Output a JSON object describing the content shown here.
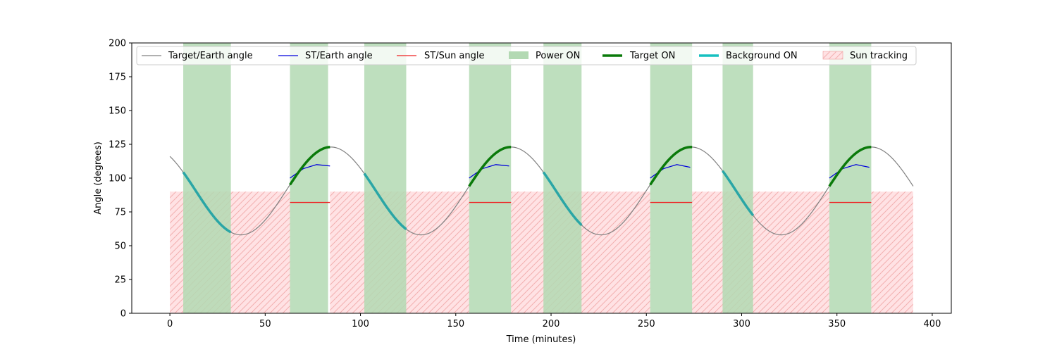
{
  "chart_data": {
    "type": "line",
    "title": "",
    "xlabel": "Time (minutes)",
    "ylabel": "Angle (degrees)",
    "xlim": [
      -20,
      410
    ],
    "ylim": [
      0,
      200
    ],
    "xticks": [
      0,
      50,
      100,
      150,
      200,
      250,
      300,
      350,
      400
    ],
    "yticks": [
      0,
      25,
      50,
      75,
      100,
      125,
      150,
      175,
      200
    ],
    "grid": false,
    "legend_position": "top, full width",
    "target_earth": {
      "name": "Target/Earth angle",
      "color": "#808080",
      "period_minutes": 94.5,
      "min": 58,
      "max": 123,
      "peak_times": [
        84.5,
        179,
        273.5,
        368
      ],
      "x_range": [
        0,
        390
      ]
    },
    "st_earth": {
      "name": "ST/Earth angle",
      "color": "#0000dd",
      "segments": [
        {
          "x": [
            63,
            70,
            77,
            84
          ],
          "y": [
            100,
            107,
            110,
            109
          ]
        },
        {
          "x": [
            157,
            164,
            171,
            178
          ],
          "y": [
            100,
            107,
            110,
            109
          ]
        },
        {
          "x": [
            252,
            259,
            266,
            273
          ],
          "y": [
            100,
            107,
            110,
            108
          ]
        },
        {
          "x": [
            346,
            353,
            360,
            367
          ],
          "y": [
            100,
            107,
            110,
            108
          ]
        }
      ]
    },
    "st_sun": {
      "name": "ST/Sun angle",
      "color": "#ee2222",
      "segments": [
        {
          "x": [
            63,
            84
          ],
          "y": [
            82,
            82
          ]
        },
        {
          "x": [
            157,
            179
          ],
          "y": [
            82,
            82
          ]
        },
        {
          "x": [
            252,
            274
          ],
          "y": [
            82,
            82
          ]
        },
        {
          "x": [
            346,
            368
          ],
          "y": [
            82,
            82
          ]
        }
      ]
    },
    "power_on": {
      "name": "Power ON",
      "color": "#b3d9b3",
      "intervals": [
        [
          7,
          32
        ],
        [
          63,
          83
        ],
        [
          102,
          124
        ],
        [
          157,
          179
        ],
        [
          196,
          216
        ],
        [
          252,
          274
        ],
        [
          290,
          306
        ],
        [
          346,
          368
        ]
      ]
    },
    "target_on": {
      "name": "Target ON",
      "color": "#0a7a0a",
      "intervals": [
        [
          63,
          84
        ],
        [
          157,
          179
        ],
        [
          252,
          274
        ],
        [
          346,
          368
        ]
      ]
    },
    "background_on": {
      "name": "Background ON",
      "color": "#2aa6a6",
      "legend_color": "#17c0c0",
      "intervals": [
        [
          7,
          32
        ],
        [
          102,
          124
        ],
        [
          196,
          216
        ],
        [
          290,
          306
        ]
      ]
    },
    "sun_tracking": {
      "name": "Sun tracking",
      "fill_color": "#ffe2e4",
      "hatch_color": "#f2b0b0",
      "level": 90,
      "intervals": [
        [
          0,
          63
        ],
        [
          84,
          157
        ],
        [
          179,
          252
        ],
        [
          274,
          346
        ],
        [
          368,
          390
        ]
      ]
    }
  }
}
